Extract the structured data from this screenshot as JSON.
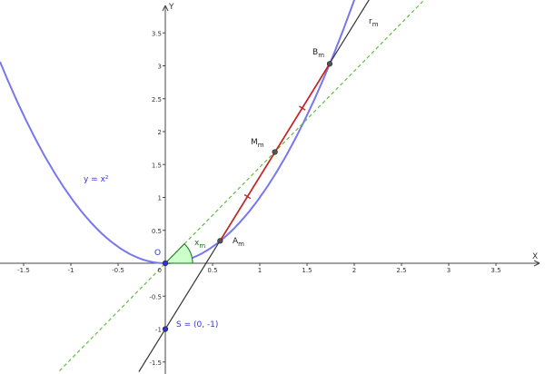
{
  "axes": {
    "x_name": "X",
    "y_name": "Y",
    "x_ticks": [
      -1.5,
      -1,
      -0.5,
      0.5,
      1,
      1.5,
      2,
      2.5,
      3,
      3.5
    ],
    "y_ticks": [
      -1.5,
      -1,
      -0.5,
      0.5,
      1,
      1.5,
      2,
      2.5,
      3,
      3.5
    ],
    "origin_label": "0",
    "x_range": [
      -1.75,
      4.0
    ],
    "y_range": [
      -1.65,
      4.0
    ]
  },
  "parabola": {
    "equation": "y = x²",
    "color": "#7777ee"
  },
  "points": {
    "O": {
      "label": "O",
      "x": 0,
      "y": 0,
      "color": "#3333cc"
    },
    "S": {
      "label": "S = (0, -1)",
      "x": 0,
      "y": -1,
      "color": "#3333cc"
    },
    "A": {
      "label_main": "A",
      "label_sub": "m",
      "x": 0.58,
      "y": 0.34,
      "color": "#555555"
    },
    "B": {
      "label_main": "B",
      "label_sub": "m",
      "x": 1.74,
      "y": 3.03,
      "color": "#555555"
    },
    "M": {
      "label_main": "M",
      "label_sub": "m",
      "x": 1.16,
      "y": 1.69,
      "color": "#555555"
    }
  },
  "secant": {
    "label_main": "r",
    "label_sub": "m",
    "slope": 2.32,
    "intercept": -1,
    "color": "#333333"
  },
  "segment": {
    "color": "#cc2222"
  },
  "dashed_line": {
    "slope": 1.46,
    "color": "#66bb44"
  },
  "angle": {
    "label_main": "x",
    "label_sub": "m",
    "color": "#117711",
    "fill": "#ccffcc"
  }
}
